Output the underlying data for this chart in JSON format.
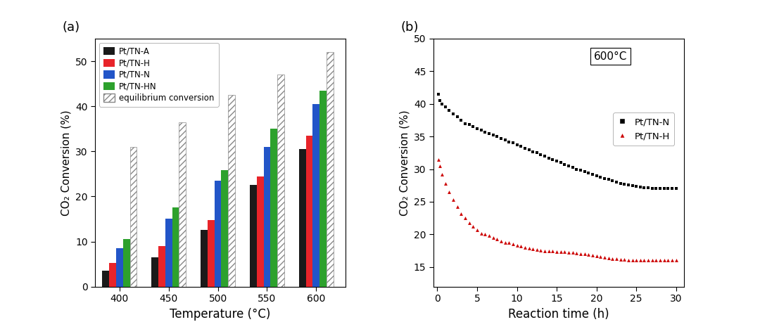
{
  "bar_temperatures": [
    400,
    450,
    500,
    550,
    600
  ],
  "bar_PtTNA": [
    3.5,
    6.5,
    12.5,
    22.5,
    30.5
  ],
  "bar_PtTNH": [
    5.2,
    9.0,
    14.8,
    24.5,
    33.5
  ],
  "bar_PtTNN": [
    8.5,
    15.0,
    23.5,
    31.0,
    40.5
  ],
  "bar_PtTNHN": [
    10.5,
    17.5,
    25.8,
    35.0,
    43.5
  ],
  "bar_equil": [
    31.0,
    36.5,
    42.5,
    47.0,
    52.0
  ],
  "bar_colors": [
    "#1a1a1a",
    "#e8242a",
    "#2255c8",
    "#2da12d"
  ],
  "equil_hatch_color": "#888888",
  "bar_ylabel": "CO₂ Conversion (%)",
  "bar_xlabel": "Temperature (°C)",
  "bar_ylim": [
    0,
    55
  ],
  "bar_yticks": [
    0,
    10,
    20,
    30,
    40,
    50
  ],
  "legend_labels": [
    "Pt/TN-A",
    "Pt/TN-H",
    "Pt/TN-N",
    "Pt/TN-HN",
    "equilibrium conversion"
  ],
  "panel_a_label": "(a)",
  "panel_b_label": "(b)",
  "line_600_annotation": "600°C",
  "line_legend_labels": [
    "Pt/TN-N",
    "Pt/TN-H"
  ],
  "line_colors": [
    "#1a1a1a",
    "#cc0000"
  ],
  "line_xlabel": "Reaction time (h)",
  "line_ylabel": "CO₂ Conversion (%)",
  "line_ylim": [
    12,
    50
  ],
  "line_yticks": [
    15,
    20,
    25,
    30,
    35,
    40,
    45,
    50
  ],
  "line_xlim": [
    -0.5,
    31
  ],
  "line_xticks": [
    0,
    5,
    10,
    15,
    20,
    25,
    30
  ],
  "PtTNN_x": [
    0.1,
    0.3,
    0.6,
    1.0,
    1.5,
    2.0,
    2.5,
    3.0,
    3.5,
    4.0,
    4.5,
    5.0,
    5.5,
    6.0,
    6.5,
    7.0,
    7.5,
    8.0,
    8.5,
    9.0,
    9.5,
    10.0,
    10.5,
    11.0,
    11.5,
    12.0,
    12.5,
    13.0,
    13.5,
    14.0,
    14.5,
    15.0,
    15.5,
    16.0,
    16.5,
    17.0,
    17.5,
    18.0,
    18.5,
    19.0,
    19.5,
    20.0,
    20.5,
    21.0,
    21.5,
    22.0,
    22.5,
    23.0,
    23.5,
    24.0,
    24.5,
    25.0,
    25.5,
    26.0,
    26.5,
    27.0,
    27.5,
    28.0,
    28.5,
    29.0,
    29.5,
    30.0
  ],
  "PtTNN_y": [
    41.5,
    40.5,
    40.0,
    39.5,
    39.0,
    38.5,
    38.0,
    37.5,
    37.0,
    36.8,
    36.5,
    36.2,
    36.0,
    35.7,
    35.5,
    35.2,
    35.0,
    34.7,
    34.5,
    34.2,
    34.0,
    33.7,
    33.5,
    33.2,
    33.0,
    32.7,
    32.5,
    32.2,
    32.0,
    31.7,
    31.5,
    31.2,
    31.0,
    30.7,
    30.5,
    30.3,
    30.0,
    29.8,
    29.6,
    29.4,
    29.2,
    29.0,
    28.8,
    28.6,
    28.4,
    28.2,
    28.0,
    27.8,
    27.7,
    27.6,
    27.5,
    27.4,
    27.3,
    27.2,
    27.1,
    27.0,
    27.0,
    27.0,
    27.0,
    27.0,
    27.0,
    27.0
  ],
  "PtTNH_x": [
    0.1,
    0.3,
    0.6,
    1.0,
    1.5,
    2.0,
    2.5,
    3.0,
    3.5,
    4.0,
    4.5,
    5.0,
    5.5,
    6.0,
    6.5,
    7.0,
    7.5,
    8.0,
    8.5,
    9.0,
    9.5,
    10.0,
    10.5,
    11.0,
    11.5,
    12.0,
    12.5,
    13.0,
    13.5,
    14.0,
    14.5,
    15.0,
    15.5,
    16.0,
    16.5,
    17.0,
    17.5,
    18.0,
    18.5,
    19.0,
    19.5,
    20.0,
    20.5,
    21.0,
    21.5,
    22.0,
    22.5,
    23.0,
    23.5,
    24.0,
    24.5,
    25.0,
    25.5,
    26.0,
    26.5,
    27.0,
    27.5,
    28.0,
    28.5,
    29.0,
    29.5,
    30.0
  ],
  "PtTNH_y": [
    31.5,
    30.5,
    29.2,
    27.8,
    26.5,
    25.3,
    24.2,
    23.2,
    22.5,
    21.8,
    21.2,
    20.7,
    20.2,
    20.0,
    19.8,
    19.5,
    19.3,
    19.0,
    18.8,
    18.7,
    18.5,
    18.3,
    18.2,
    18.0,
    17.9,
    17.8,
    17.7,
    17.6,
    17.5,
    17.5,
    17.5,
    17.4,
    17.3,
    17.3,
    17.2,
    17.2,
    17.1,
    17.0,
    17.0,
    16.9,
    16.8,
    16.7,
    16.6,
    16.5,
    16.4,
    16.3,
    16.3,
    16.2,
    16.2,
    16.1,
    16.1,
    16.1,
    16.1,
    16.0,
    16.0,
    16.0,
    16.0,
    16.0,
    16.0,
    16.0,
    16.0,
    16.0
  ]
}
